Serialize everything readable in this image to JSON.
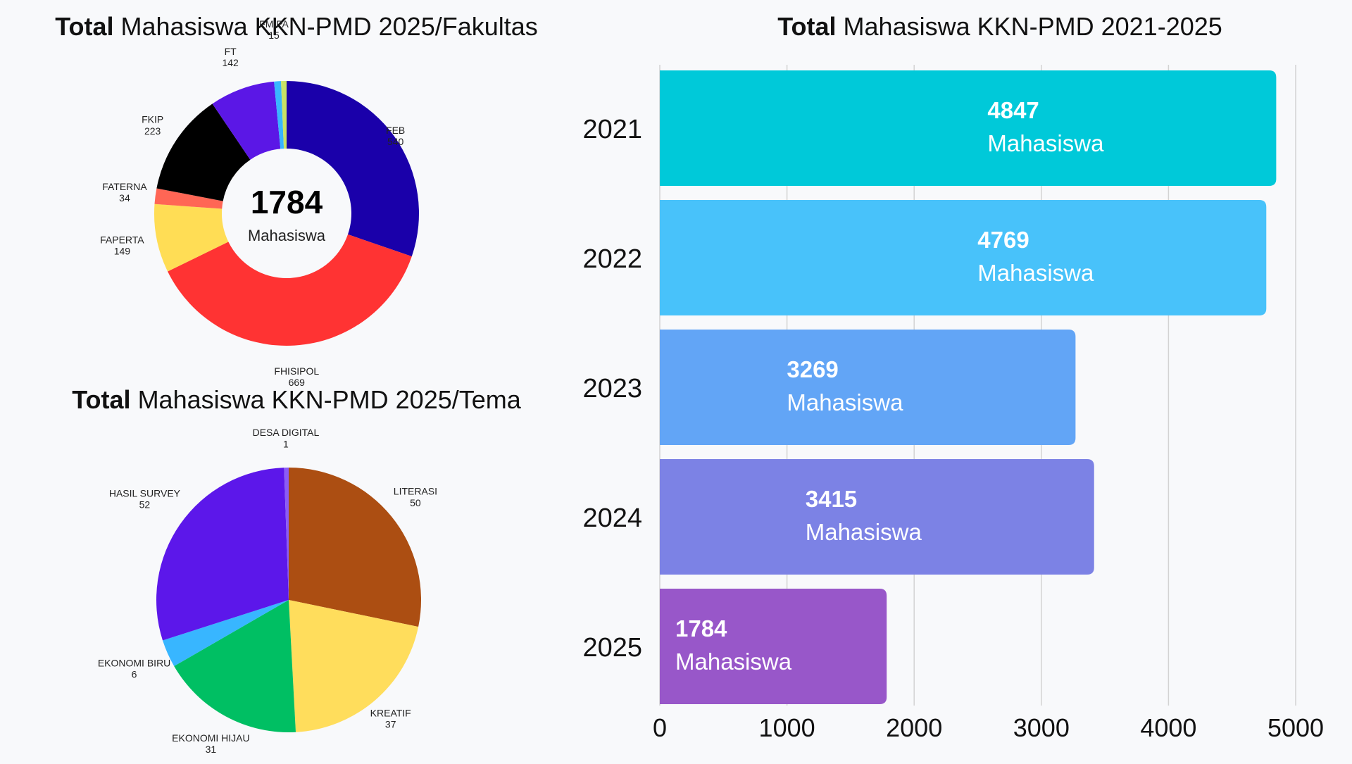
{
  "chart_data": [
    {
      "type": "pie",
      "variant": "donut",
      "title_bold": "Total",
      "title_rest": " Mahasiswa KKN-PMD 2025/Fakultas",
      "center_value": "1784",
      "center_unit": "Mahasiswa",
      "slices": [
        {
          "name": "FEB",
          "value": 540,
          "color": "#1a00aa"
        },
        {
          "name": "FHISIPOL",
          "value": 669,
          "color": "#ff3333"
        },
        {
          "name": "FAPERTA",
          "value": 149,
          "color": "#ffdd55"
        },
        {
          "name": "FATERNA",
          "value": 34,
          "color": "#ff6655"
        },
        {
          "name": "FKIP",
          "value": 223,
          "color": "#000000"
        },
        {
          "name": "FT",
          "value": 142,
          "color": "#5b17e6"
        },
        {
          "name": "FMIPA",
          "value": 15,
          "color": "#38b6ff"
        },
        {
          "name": "",
          "value": 12,
          "color": "#c9e265"
        }
      ]
    },
    {
      "type": "pie",
      "title_bold": "Total",
      "title_rest": " Mahasiswa KKN-PMD 2025/Tema",
      "slices": [
        {
          "name": "LITERASI",
          "value": 50,
          "color": "#ac4e12"
        },
        {
          "name": "KREATIF",
          "value": 37,
          "color": "#ffdd5c"
        },
        {
          "name": "EKONOMI HIJAU",
          "value": 31,
          "color": "#00bf63"
        },
        {
          "name": "EKONOMI BIRU",
          "value": 6,
          "color": "#38b6ff"
        },
        {
          "name": "HASIL SURVEY",
          "value": 52,
          "color": "#5c17ea"
        },
        {
          "name": "DESA DIGITAL",
          "value": 1,
          "color": "#8b5cf6"
        }
      ]
    },
    {
      "type": "bar",
      "orientation": "horizontal",
      "title_bold": "Total",
      "title_rest": " Mahasiswa KKN-PMD 2021-2025",
      "categories": [
        "2021",
        "2022",
        "2023",
        "2024",
        "2025"
      ],
      "values": [
        4847,
        4769,
        3269,
        3415,
        1784
      ],
      "colors": [
        "#00c9d9",
        "#48c2fa",
        "#62a5f6",
        "#7c82e5",
        "#9857c9"
      ],
      "value_unit": "Mahasiswa",
      "xlim": [
        0,
        5000
      ],
      "xticks": [
        0,
        1000,
        2000,
        3000,
        4000,
        5000
      ],
      "grid": true
    }
  ]
}
